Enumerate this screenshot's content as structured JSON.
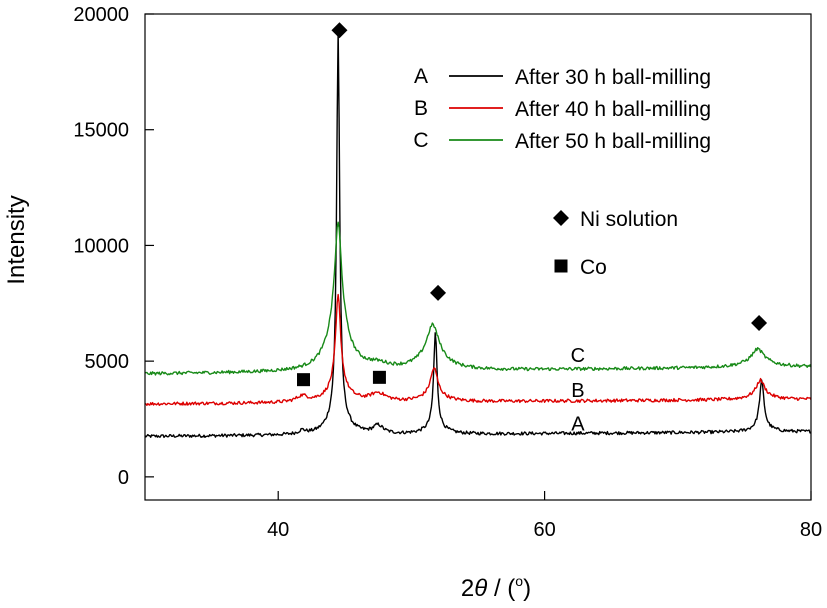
{
  "chart_data": {
    "type": "line",
    "title": "",
    "xlabel": {
      "prefix": "2",
      "theta": "θ",
      "middle": " / (",
      "degree": "o",
      "suffix": ")"
    },
    "ylabel": "Intensity",
    "xlim": [
      30,
      80
    ],
    "ylim": [
      -1000,
      20000
    ],
    "x_ticks": [
      40,
      60,
      80
    ],
    "y_ticks": [
      0,
      5000,
      10000,
      15000,
      20000
    ],
    "grid": false,
    "legend_position": "top-right",
    "series": [
      {
        "key": "A",
        "name": "After 30 h ball-milling",
        "color": "#000000",
        "curve_label": "A",
        "curve_label_pos": [
          62.5,
          1750
        ],
        "base": 1750,
        "slope": 4,
        "peaks": [
          {
            "x": 41.8,
            "h": 150,
            "w": 0.3
          },
          {
            "x": 44.5,
            "h": 16400,
            "w": 0.13
          },
          {
            "x": 44.5,
            "h": 1100,
            "w": 0.7
          },
          {
            "x": 47.5,
            "h": 350,
            "w": 0.45
          },
          {
            "x": 51.8,
            "h": 4000,
            "w": 0.15
          },
          {
            "x": 51.8,
            "h": 400,
            "w": 0.7
          },
          {
            "x": 76.3,
            "h": 2000,
            "w": 0.2
          },
          {
            "x": 76.3,
            "h": 200,
            "w": 0.8
          }
        ]
      },
      {
        "key": "B",
        "name": "After 40 h ball-milling",
        "color": "#dd0000",
        "curve_label": "B",
        "curve_label_pos": [
          62.5,
          3200
        ],
        "base": 3150,
        "slope": 4,
        "peaks": [
          {
            "x": 41.8,
            "h": 250,
            "w": 0.5
          },
          {
            "x": 44.5,
            "h": 3800,
            "w": 0.22
          },
          {
            "x": 44.5,
            "h": 800,
            "w": 0.8
          },
          {
            "x": 47.5,
            "h": 350,
            "w": 0.7
          },
          {
            "x": 51.7,
            "h": 1100,
            "w": 0.3
          },
          {
            "x": 51.7,
            "h": 350,
            "w": 0.9
          },
          {
            "x": 76.2,
            "h": 650,
            "w": 0.35
          },
          {
            "x": 76.2,
            "h": 200,
            "w": 1.0
          }
        ]
      },
      {
        "key": "C",
        "name": "After 50 h ball-milling",
        "color": "#188a18",
        "curve_label": "C",
        "curve_label_pos": [
          62.5,
          4700
        ],
        "base": 4450,
        "slope": 6,
        "peaks": [
          {
            "x": 44.5,
            "h": 4200,
            "w": 0.3
          },
          {
            "x": 44.5,
            "h": 2200,
            "w": 0.9
          },
          {
            "x": 47.5,
            "h": 200,
            "w": 1.0
          },
          {
            "x": 51.6,
            "h": 1250,
            "w": 0.5
          },
          {
            "x": 51.6,
            "h": 700,
            "w": 1.2
          },
          {
            "x": 76.0,
            "h": 550,
            "w": 0.5
          },
          {
            "x": 76.0,
            "h": 250,
            "w": 1.4
          }
        ]
      }
    ],
    "phase_legend": [
      {
        "symbol": "diamond",
        "label": "Ni solution"
      },
      {
        "symbol": "square",
        "label": "Co"
      }
    ],
    "peak_markers": [
      {
        "symbol": "diamond",
        "x": 44.6,
        "y": 19300
      },
      {
        "symbol": "diamond",
        "x": 52.0,
        "y": 7950
      },
      {
        "symbol": "diamond",
        "x": 76.1,
        "y": 6650
      },
      {
        "symbol": "square",
        "x": 41.9,
        "y": 4200
      },
      {
        "symbol": "square",
        "x": 47.6,
        "y": 4300
      }
    ]
  }
}
